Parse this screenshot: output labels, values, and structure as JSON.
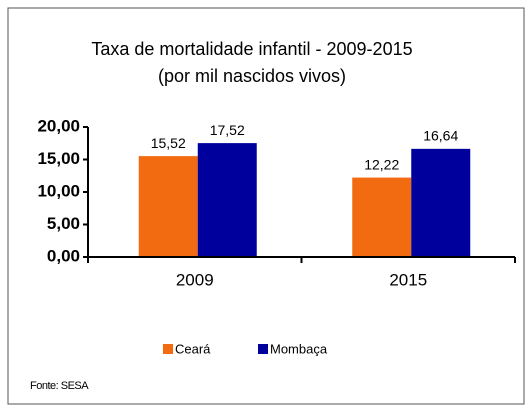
{
  "chart_data": {
    "type": "bar",
    "title": "Taxa de mortalidade infantil - 2009-2015",
    "subtitle": "(por mil nascidos vivos)",
    "categories": [
      "2009",
      "2015"
    ],
    "series": [
      {
        "name": "Ceará",
        "color": "#f26b10",
        "values": [
          15.52,
          12.22
        ],
        "value_labels": [
          "15,52",
          "12,22"
        ]
      },
      {
        "name": "Mombaça",
        "color": "#00009c",
        "values": [
          17.52,
          16.64
        ],
        "value_labels": [
          "17,52",
          "16,64"
        ]
      }
    ],
    "ylim": [
      0,
      20
    ],
    "yticks": [
      {
        "value": 0,
        "label": "0,00"
      },
      {
        "value": 5,
        "label": "5,00"
      },
      {
        "value": 10,
        "label": "10,00"
      },
      {
        "value": 15,
        "label": "15,00"
      },
      {
        "value": 20,
        "label": "20,00"
      }
    ],
    "legend": "bottom",
    "source": "Fonte: SESA"
  }
}
